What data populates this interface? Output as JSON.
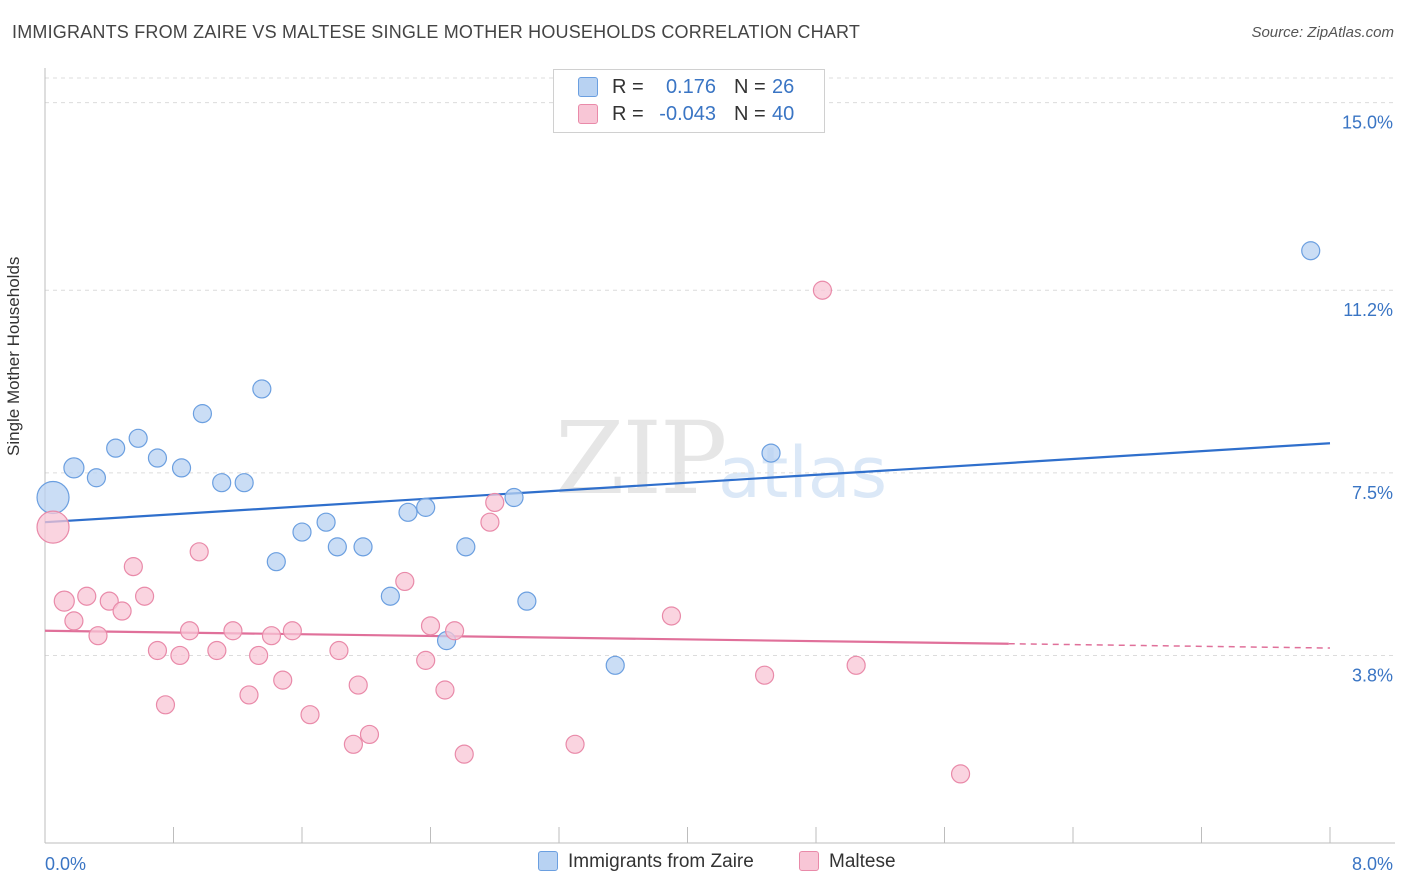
{
  "title": "IMMIGRANTS FROM ZAIRE VS MALTESE SINGLE MOTHER HOUSEHOLDS CORRELATION CHART",
  "source": "Source: ZipAtlas.com",
  "watermark": {
    "zip": "ZIP",
    "atlas": "atlas"
  },
  "legend_top": {
    "rows": [
      {
        "r_label": "R =",
        "r_value": "0.176",
        "n_label": "N =",
        "n_value": "26"
      },
      {
        "r_label": "R =",
        "r_value": "-0.043",
        "n_label": "N =",
        "n_value": "40"
      }
    ]
  },
  "legend_bottom": {
    "series1": "Immigrants from Zaire",
    "series2": "Maltese"
  },
  "colors": {
    "blue_fill": "#b8d2f2",
    "blue_stroke": "#6b9fe0",
    "blue_line": "#2f6fcc",
    "pink_fill": "#f8c6d6",
    "pink_stroke": "#e98aa9",
    "pink_line": "#e0709a",
    "tick_text": "#3a75c4"
  },
  "chart_data": {
    "type": "scatter",
    "title": "IMMIGRANTS FROM ZAIRE VS MALTESE SINGLE MOTHER HOUSEHOLDS CORRELATION CHART",
    "xlabel": "",
    "ylabel": "Single Mother Households",
    "xlim": [
      0,
      8.0
    ],
    "ylim": [
      0,
      15.5
    ],
    "x_tick_labels": [
      "0.0%",
      "8.0%"
    ],
    "y_ticks": [
      3.8,
      7.5,
      11.2,
      15.0
    ],
    "y_tick_labels": [
      "3.8%",
      "7.5%",
      "11.2%",
      "15.0%"
    ],
    "grid": true,
    "series": [
      {
        "name": "Immigrants from Zaire",
        "r": 0.176,
        "n": 26,
        "trend": {
          "x": [
            0.0,
            8.0
          ],
          "y": [
            6.5,
            8.1
          ],
          "dash_from": null
        },
        "points": [
          {
            "x": 0.05,
            "y": 7.0,
            "s": 16
          },
          {
            "x": 0.18,
            "y": 7.6,
            "s": 10
          },
          {
            "x": 0.32,
            "y": 7.4,
            "s": 9
          },
          {
            "x": 0.44,
            "y": 8.0,
            "s": 9
          },
          {
            "x": 0.58,
            "y": 8.2,
            "s": 9
          },
          {
            "x": 0.7,
            "y": 7.8,
            "s": 9
          },
          {
            "x": 0.85,
            "y": 7.6,
            "s": 9
          },
          {
            "x": 0.98,
            "y": 8.7,
            "s": 9
          },
          {
            "x": 1.1,
            "y": 7.3,
            "s": 9
          },
          {
            "x": 1.24,
            "y": 7.3,
            "s": 9
          },
          {
            "x": 1.35,
            "y": 9.2,
            "s": 9
          },
          {
            "x": 1.44,
            "y": 5.7,
            "s": 9
          },
          {
            "x": 1.6,
            "y": 6.3,
            "s": 9
          },
          {
            "x": 1.75,
            "y": 6.5,
            "s": 9
          },
          {
            "x": 1.82,
            "y": 6.0,
            "s": 9
          },
          {
            "x": 1.98,
            "y": 6.0,
            "s": 9
          },
          {
            "x": 2.15,
            "y": 5.0,
            "s": 9
          },
          {
            "x": 2.26,
            "y": 6.7,
            "s": 9
          },
          {
            "x": 2.37,
            "y": 6.8,
            "s": 9
          },
          {
            "x": 2.5,
            "y": 4.1,
            "s": 9
          },
          {
            "x": 2.62,
            "y": 6.0,
            "s": 9
          },
          {
            "x": 2.92,
            "y": 7.0,
            "s": 9
          },
          {
            "x": 3.0,
            "y": 4.9,
            "s": 9
          },
          {
            "x": 3.55,
            "y": 3.6,
            "s": 9
          },
          {
            "x": 4.52,
            "y": 7.9,
            "s": 9
          },
          {
            "x": 7.88,
            "y": 12.0,
            "s": 9
          }
        ]
      },
      {
        "name": "Maltese",
        "r": -0.043,
        "n": 40,
        "trend": {
          "x": [
            0.0,
            8.0
          ],
          "y": [
            4.3,
            3.95
          ],
          "dash_from": 6.0
        },
        "points": [
          {
            "x": 0.05,
            "y": 6.4,
            "s": 16
          },
          {
            "x": 0.12,
            "y": 4.9,
            "s": 10
          },
          {
            "x": 0.18,
            "y": 4.5,
            "s": 9
          },
          {
            "x": 0.26,
            "y": 5.0,
            "s": 9
          },
          {
            "x": 0.33,
            "y": 4.2,
            "s": 9
          },
          {
            "x": 0.4,
            "y": 4.9,
            "s": 9
          },
          {
            "x": 0.48,
            "y": 4.7,
            "s": 9
          },
          {
            "x": 0.55,
            "y": 5.6,
            "s": 9
          },
          {
            "x": 0.62,
            "y": 5.0,
            "s": 9
          },
          {
            "x": 0.7,
            "y": 3.9,
            "s": 9
          },
          {
            "x": 0.75,
            "y": 2.8,
            "s": 9
          },
          {
            "x": 0.84,
            "y": 3.8,
            "s": 9
          },
          {
            "x": 0.9,
            "y": 4.3,
            "s": 9
          },
          {
            "x": 0.96,
            "y": 5.9,
            "s": 9
          },
          {
            "x": 1.07,
            "y": 3.9,
            "s": 9
          },
          {
            "x": 1.17,
            "y": 4.3,
            "s": 9
          },
          {
            "x": 1.27,
            "y": 3.0,
            "s": 9
          },
          {
            "x": 1.33,
            "y": 3.8,
            "s": 9
          },
          {
            "x": 1.41,
            "y": 4.2,
            "s": 9
          },
          {
            "x": 1.48,
            "y": 3.3,
            "s": 9
          },
          {
            "x": 1.54,
            "y": 4.3,
            "s": 9
          },
          {
            "x": 1.65,
            "y": 2.6,
            "s": 9
          },
          {
            "x": 1.83,
            "y": 3.9,
            "s": 9
          },
          {
            "x": 1.92,
            "y": 2.0,
            "s": 9
          },
          {
            "x": 1.95,
            "y": 3.2,
            "s": 9
          },
          {
            "x": 2.02,
            "y": 2.2,
            "s": 9
          },
          {
            "x": 2.24,
            "y": 5.3,
            "s": 9
          },
          {
            "x": 2.37,
            "y": 3.7,
            "s": 9
          },
          {
            "x": 2.4,
            "y": 4.4,
            "s": 9
          },
          {
            "x": 2.49,
            "y": 3.1,
            "s": 9
          },
          {
            "x": 2.55,
            "y": 4.3,
            "s": 9
          },
          {
            "x": 2.61,
            "y": 1.8,
            "s": 9
          },
          {
            "x": 2.77,
            "y": 6.5,
            "s": 9
          },
          {
            "x": 2.8,
            "y": 6.9,
            "s": 9
          },
          {
            "x": 3.3,
            "y": 2.0,
            "s": 9
          },
          {
            "x": 3.9,
            "y": 4.6,
            "s": 9
          },
          {
            "x": 4.48,
            "y": 3.4,
            "s": 9
          },
          {
            "x": 4.84,
            "y": 11.2,
            "s": 9
          },
          {
            "x": 5.05,
            "y": 3.6,
            "s": 9
          },
          {
            "x": 5.7,
            "y": 1.4,
            "s": 9
          }
        ]
      }
    ]
  }
}
